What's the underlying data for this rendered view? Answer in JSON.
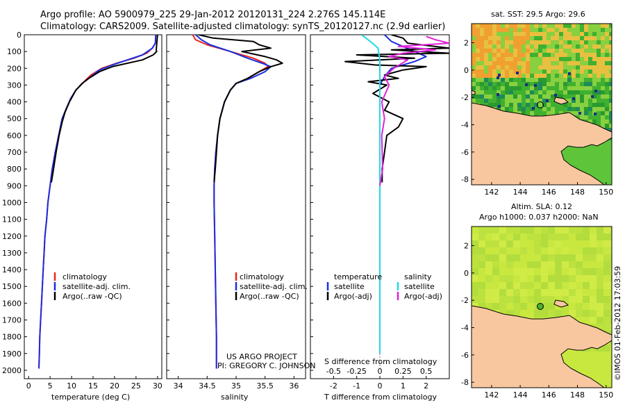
{
  "header": {
    "line1": "Argo profile: AO 5900979_225 29-Jan-2012 20120131_224 2.276S 145.114E",
    "line2": "Climatology: CARS2009. Satellite-adjusted climatology: synTS_20120127.nc (2.9d earlier)"
  },
  "side_text": "©IMOS 01-Feb-2012 17:03:59",
  "credit": {
    "line1": "US ARGO PROJECT",
    "line2": "PI: GREGORY C. JOHNSON"
  },
  "colors": {
    "climatology": "#e8261c",
    "satellite": "#1a2de0",
    "argo": "#000000",
    "cyan": "#22d8e0",
    "magenta": "#e020d8",
    "land": "#f9c79f",
    "ocean_warm": "#5ec43a",
    "ocean_sla": "#c8e840"
  },
  "chart_data": [
    {
      "type": "line",
      "xlabel": "temperature (deg C)",
      "ylabel": "",
      "xlim": [
        -1,
        31
      ],
      "ylim": [
        2050,
        0
      ],
      "xticks": [
        "0",
        "5",
        "10",
        "15",
        "20",
        "25",
        "30"
      ],
      "yticks": [
        "0",
        "100",
        "200",
        "300",
        "400",
        "500",
        "600",
        "700",
        "800",
        "900",
        "1000",
        "1100",
        "1200",
        "1300",
        "1400",
        "1500",
        "1600",
        "1700",
        "1800",
        "1900",
        "2000"
      ],
      "legend": [
        "climatology",
        "satellite-adj. clim.",
        "Argo(..raw -QC)"
      ],
      "series": [
        {
          "name": "climatology",
          "points": [
            [
              29.6,
              0
            ],
            [
              29.5,
              50
            ],
            [
              28.8,
              80
            ],
            [
              27.5,
              110
            ],
            [
              24.5,
              140
            ],
            [
              20.5,
              170
            ],
            [
              17,
              200
            ],
            [
              14.5,
              240
            ],
            [
              12.5,
              290
            ],
            [
              11,
              330
            ],
            [
              9.8,
              380
            ],
            [
              8.6,
              450
            ],
            [
              7.8,
              500
            ],
            [
              7,
              600
            ],
            [
              6.2,
              700
            ],
            [
              5.5,
              800
            ],
            [
              5,
              900
            ],
            [
              4.5,
              1000
            ],
            [
              4.2,
              1100
            ],
            [
              3.8,
              1200
            ],
            [
              3.6,
              1300
            ],
            [
              3.4,
              1400
            ],
            [
              3.2,
              1500
            ],
            [
              3,
              1600
            ],
            [
              2.8,
              1700
            ],
            [
              2.6,
              1800
            ],
            [
              2.5,
              1900
            ],
            [
              2.4,
              1990
            ]
          ]
        },
        {
          "name": "satellite-adj. clim.",
          "points": [
            [
              29.6,
              0
            ],
            [
              29.5,
              50
            ],
            [
              28.8,
              80
            ],
            [
              26.5,
              120
            ],
            [
              23,
              150
            ],
            [
              19.5,
              180
            ],
            [
              16.5,
              210
            ],
            [
              14.5,
              250
            ],
            [
              12.5,
              290
            ],
            [
              11,
              330
            ],
            [
              9.8,
              380
            ],
            [
              8.6,
              450
            ],
            [
              7.8,
              500
            ],
            [
              7,
              600
            ],
            [
              6.2,
              700
            ],
            [
              5.5,
              800
            ],
            [
              5,
              900
            ],
            [
              4.5,
              1000
            ],
            [
              4.2,
              1100
            ],
            [
              3.8,
              1200
            ],
            [
              3.6,
              1300
            ],
            [
              3.4,
              1400
            ],
            [
              3.2,
              1500
            ],
            [
              3,
              1600
            ],
            [
              2.8,
              1700
            ],
            [
              2.6,
              1800
            ],
            [
              2.5,
              1900
            ],
            [
              2.4,
              1990
            ]
          ]
        },
        {
          "name": "Argo(..raw -QC)",
          "points": [
            [
              30,
              0
            ],
            [
              29.9,
              30
            ],
            [
              29.8,
              60
            ],
            [
              29.7,
              90
            ],
            [
              29.8,
              100
            ],
            [
              29,
              120
            ],
            [
              26.5,
              150
            ],
            [
              23,
              170
            ],
            [
              19.5,
              190
            ],
            [
              16.5,
              220
            ],
            [
              14,
              260
            ],
            [
              12.5,
              290
            ],
            [
              11,
              330
            ],
            [
              9.5,
              400
            ],
            [
              8.5,
              460
            ],
            [
              7.8,
              520
            ],
            [
              7.1,
              600
            ],
            [
              6.4,
              700
            ],
            [
              5.8,
              800
            ],
            [
              5.3,
              880
            ]
          ]
        }
      ]
    },
    {
      "type": "line",
      "xlabel": "salinity",
      "xlim": [
        33.8,
        36.2
      ],
      "ylim": [
        2050,
        0
      ],
      "xticks": [
        "34",
        "34.5",
        "35",
        "35.5",
        "36"
      ],
      "legend": [
        "climatology",
        "satellite-adj. clim.",
        "Argo(..raw -QC)"
      ],
      "series": [
        {
          "name": "climatology",
          "points": [
            [
              34.25,
              0
            ],
            [
              34.3,
              30
            ],
            [
              34.5,
              60
            ],
            [
              34.9,
              100
            ],
            [
              35.3,
              140
            ],
            [
              35.5,
              170
            ],
            [
              35.55,
              190
            ],
            [
              35.4,
              220
            ],
            [
              35.2,
              260
            ],
            [
              35.0,
              290
            ],
            [
              34.9,
              330
            ],
            [
              34.8,
              400
            ],
            [
              34.72,
              500
            ],
            [
              34.68,
              600
            ],
            [
              34.65,
              700
            ],
            [
              34.63,
              800
            ],
            [
              34.62,
              900
            ],
            [
              34.62,
              1000
            ],
            [
              34.63,
              1200
            ],
            [
              34.64,
              1400
            ],
            [
              34.65,
              1600
            ],
            [
              34.66,
              1800
            ],
            [
              34.66,
              1990
            ]
          ]
        },
        {
          "name": "satellite-adj. clim.",
          "points": [
            [
              34.3,
              0
            ],
            [
              34.4,
              30
            ],
            [
              34.55,
              60
            ],
            [
              34.9,
              100
            ],
            [
              35.2,
              140
            ],
            [
              35.45,
              170
            ],
            [
              35.6,
              190
            ],
            [
              35.5,
              220
            ],
            [
              35.25,
              260
            ],
            [
              35.0,
              290
            ],
            [
              34.9,
              330
            ],
            [
              34.8,
              400
            ],
            [
              34.72,
              500
            ],
            [
              34.68,
              600
            ],
            [
              34.65,
              700
            ],
            [
              34.63,
              800
            ],
            [
              34.62,
              900
            ],
            [
              34.62,
              1000
            ],
            [
              34.63,
              1200
            ],
            [
              34.64,
              1400
            ],
            [
              34.65,
              1600
            ],
            [
              34.66,
              1800
            ],
            [
              34.66,
              1990
            ]
          ]
        },
        {
          "name": "Argo(..raw -QC)",
          "points": [
            [
              34.35,
              0
            ],
            [
              34.6,
              20
            ],
            [
              35.3,
              40
            ],
            [
              35.4,
              60
            ],
            [
              35.6,
              80
            ],
            [
              35.1,
              100
            ],
            [
              35.5,
              130
            ],
            [
              35.7,
              150
            ],
            [
              35.8,
              170
            ],
            [
              35.6,
              190
            ],
            [
              35.4,
              220
            ],
            [
              35.2,
              260
            ],
            [
              35.0,
              290
            ],
            [
              34.9,
              330
            ],
            [
              34.8,
              400
            ],
            [
              34.72,
              500
            ],
            [
              34.68,
              600
            ],
            [
              34.66,
              700
            ],
            [
              34.64,
              800
            ],
            [
              34.62,
              880
            ]
          ]
        }
      ]
    },
    {
      "type": "line",
      "xlabel": "T difference from climatology",
      "xlabel_top": "S difference from climatology",
      "xlim_T": [
        -3,
        3
      ],
      "xlim_S": [
        -0.75,
        0.75
      ],
      "ylim": [
        2050,
        0
      ],
      "xticks_T": [
        "-2",
        "-1",
        "0",
        "1",
        "2"
      ],
      "xticks_S": [
        "-0.5",
        "-0.25",
        "0",
        "0.25",
        "0.5"
      ],
      "legend_temperature": {
        "title": "temperature",
        "entries": [
          "satellite",
          "Argo(-adj)"
        ]
      },
      "legend_salinity": {
        "title": "salinity",
        "entries": [
          "satellite",
          "Argo(-adj)"
        ]
      },
      "series": [
        {
          "name": "T satellite",
          "axis": "T",
          "points": [
            [
              0.2,
              0
            ],
            [
              0.5,
              40
            ],
            [
              1,
              70
            ],
            [
              1.5,
              100
            ],
            [
              2,
              130
            ],
            [
              1.5,
              160
            ],
            [
              1,
              180
            ],
            [
              0.5,
              200
            ],
            [
              0.2,
              250
            ],
            [
              0,
              300
            ],
            [
              0,
              500
            ],
            [
              0,
              1000
            ],
            [
              0,
              1500
            ],
            [
              0,
              1900
            ]
          ]
        },
        {
          "name": "T Argo(-adj)",
          "axis": "T",
          "points": [
            [
              0.5,
              0
            ],
            [
              1,
              20
            ],
            [
              1.2,
              50
            ],
            [
              3,
              80
            ],
            [
              0.5,
              90
            ],
            [
              3,
              110
            ],
            [
              -1,
              120
            ],
            [
              1.5,
              140
            ],
            [
              -1.5,
              160
            ],
            [
              -0.2,
              180
            ],
            [
              2,
              190
            ],
            [
              1,
              210
            ],
            [
              0.2,
              240
            ],
            [
              0.8,
              260
            ],
            [
              -0.5,
              280
            ],
            [
              0.3,
              300
            ],
            [
              -0.3,
              350
            ],
            [
              0.4,
              400
            ],
            [
              0.2,
              450
            ],
            [
              1,
              500
            ],
            [
              0.8,
              550
            ],
            [
              0.3,
              600
            ],
            [
              0.2,
              700
            ],
            [
              0.1,
              800
            ],
            [
              0.1,
              880
            ]
          ]
        },
        {
          "name": "S satellite",
          "axis": "S",
          "points": [
            [
              -0.2,
              0
            ],
            [
              -0.15,
              20
            ],
            [
              -0.08,
              50
            ],
            [
              -0.02,
              80
            ],
            [
              0,
              150
            ],
            [
              0,
              400
            ],
            [
              0,
              1000
            ],
            [
              0,
              1900
            ]
          ]
        },
        {
          "name": "S Argo(-adj)",
          "axis": "S",
          "points": [
            [
              0.5,
              10
            ],
            [
              0.6,
              30
            ],
            [
              0.75,
              50
            ],
            [
              0.2,
              70
            ],
            [
              0.6,
              90
            ],
            [
              0.25,
              110
            ],
            [
              0.1,
              130
            ],
            [
              0.3,
              150
            ],
            [
              0.15,
              200
            ],
            [
              0.05,
              250
            ],
            [
              0.1,
              300
            ],
            [
              0.02,
              400
            ],
            [
              0.05,
              500
            ],
            [
              0.02,
              600
            ],
            [
              0.03,
              800
            ],
            [
              0.0,
              900
            ]
          ]
        }
      ]
    },
    {
      "type": "heatmap",
      "title": "sat. SST: 29.5 Argo: 29.6",
      "xlim": [
        140.6,
        150.4
      ],
      "ylim": [
        -8.4,
        3.4
      ],
      "xticks": [
        "142",
        "144",
        "146",
        "148",
        "150"
      ],
      "yticks": [
        "2",
        "0",
        "-2",
        "-4",
        "-6",
        "-8"
      ],
      "argo_location": [
        145.114,
        -2.276
      ]
    },
    {
      "type": "heatmap",
      "title_line1": "Altim. SLA: 0.12",
      "title_line2": "Argo h1000: 0.037 h2000: NaN",
      "xlim": [
        140.6,
        150.4
      ],
      "ylim": [
        -8.4,
        3.4
      ],
      "xticks": [
        "142",
        "144",
        "146",
        "148",
        "150"
      ],
      "yticks": [
        "2",
        "0",
        "-2",
        "-4",
        "-6",
        "-8"
      ],
      "argo_location": [
        145.114,
        -2.276
      ]
    }
  ]
}
